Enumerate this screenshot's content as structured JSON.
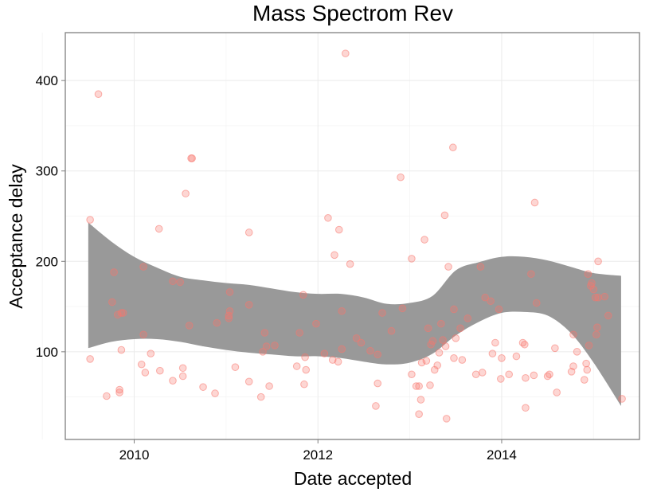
{
  "chart_data": {
    "type": "scatter",
    "title": "Mass Spectrom Rev",
    "xlabel": "Date accepted",
    "ylabel": "Acceptance delay",
    "x_tick_labels": [
      "2010",
      "2012",
      "2014"
    ],
    "y_tick_labels": [
      "100",
      "200",
      "300",
      "400"
    ],
    "grid": true,
    "colors": {
      "points": "#f8766d",
      "ribbon": "#999999",
      "panel_border": "#7f7f7f",
      "grid": "#ebebeb"
    },
    "series": [
      {
        "values": [
          {
            "x": 2009.52,
            "y": 246
          },
          {
            "x": 2009.52,
            "y": 92
          },
          {
            "x": 2009.61,
            "y": 385
          },
          {
            "x": 2009.7,
            "y": 51
          },
          {
            "x": 2009.76,
            "y": 155
          },
          {
            "x": 2009.78,
            "y": 188
          },
          {
            "x": 2009.82,
            "y": 141
          },
          {
            "x": 2009.84,
            "y": 55
          },
          {
            "x": 2009.84,
            "y": 58
          },
          {
            "x": 2009.86,
            "y": 143
          },
          {
            "x": 2009.86,
            "y": 102
          },
          {
            "x": 2009.88,
            "y": 143
          },
          {
            "x": 2010.08,
            "y": 86
          },
          {
            "x": 2010.1,
            "y": 119
          },
          {
            "x": 2010.1,
            "y": 194
          },
          {
            "x": 2010.12,
            "y": 77
          },
          {
            "x": 2010.18,
            "y": 98
          },
          {
            "x": 2010.27,
            "y": 236
          },
          {
            "x": 2010.28,
            "y": 79
          },
          {
            "x": 2010.42,
            "y": 68
          },
          {
            "x": 2010.42,
            "y": 178
          },
          {
            "x": 2010.5,
            "y": 177
          },
          {
            "x": 2010.53,
            "y": 82
          },
          {
            "x": 2010.53,
            "y": 73
          },
          {
            "x": 2010.56,
            "y": 275
          },
          {
            "x": 2010.6,
            "y": 129
          },
          {
            "x": 2010.62,
            "y": 314
          },
          {
            "x": 2010.63,
            "y": 314
          },
          {
            "x": 2010.75,
            "y": 61
          },
          {
            "x": 2010.88,
            "y": 54
          },
          {
            "x": 2010.9,
            "y": 132
          },
          {
            "x": 2011.03,
            "y": 140
          },
          {
            "x": 2011.03,
            "y": 137
          },
          {
            "x": 2011.04,
            "y": 145
          },
          {
            "x": 2011.04,
            "y": 166
          },
          {
            "x": 2011.1,
            "y": 83
          },
          {
            "x": 2011.25,
            "y": 232
          },
          {
            "x": 2011.25,
            "y": 67
          },
          {
            "x": 2011.25,
            "y": 152
          },
          {
            "x": 2011.38,
            "y": 50
          },
          {
            "x": 2011.4,
            "y": 100
          },
          {
            "x": 2011.42,
            "y": 121
          },
          {
            "x": 2011.44,
            "y": 106
          },
          {
            "x": 2011.47,
            "y": 62
          },
          {
            "x": 2011.53,
            "y": 107
          },
          {
            "x": 2011.77,
            "y": 84
          },
          {
            "x": 2011.8,
            "y": 121
          },
          {
            "x": 2011.84,
            "y": 163
          },
          {
            "x": 2011.85,
            "y": 64
          },
          {
            "x": 2011.86,
            "y": 94
          },
          {
            "x": 2011.87,
            "y": 80
          },
          {
            "x": 2011.98,
            "y": 131
          },
          {
            "x": 2012.07,
            "y": 98
          },
          {
            "x": 2012.11,
            "y": 248
          },
          {
            "x": 2012.16,
            "y": 91
          },
          {
            "x": 2012.18,
            "y": 207
          },
          {
            "x": 2012.22,
            "y": 89
          },
          {
            "x": 2012.23,
            "y": 235
          },
          {
            "x": 2012.26,
            "y": 103
          },
          {
            "x": 2012.26,
            "y": 145
          },
          {
            "x": 2012.3,
            "y": 430
          },
          {
            "x": 2012.35,
            "y": 197
          },
          {
            "x": 2012.42,
            "y": 115
          },
          {
            "x": 2012.47,
            "y": 110
          },
          {
            "x": 2012.57,
            "y": 101
          },
          {
            "x": 2012.63,
            "y": 40
          },
          {
            "x": 2012.65,
            "y": 97
          },
          {
            "x": 2012.65,
            "y": 65
          },
          {
            "x": 2012.7,
            "y": 143
          },
          {
            "x": 2012.8,
            "y": 123
          },
          {
            "x": 2012.9,
            "y": 293
          },
          {
            "x": 2012.92,
            "y": 148
          },
          {
            "x": 2013.02,
            "y": 203
          },
          {
            "x": 2013.02,
            "y": 75
          },
          {
            "x": 2013.07,
            "y": 62
          },
          {
            "x": 2013.1,
            "y": 31
          },
          {
            "x": 2013.1,
            "y": 62
          },
          {
            "x": 2013.12,
            "y": 47
          },
          {
            "x": 2013.13,
            "y": 88
          },
          {
            "x": 2013.16,
            "y": 224
          },
          {
            "x": 2013.18,
            "y": 90
          },
          {
            "x": 2013.2,
            "y": 126
          },
          {
            "x": 2013.22,
            "y": 63
          },
          {
            "x": 2013.23,
            "y": 108
          },
          {
            "x": 2013.25,
            "y": 112
          },
          {
            "x": 2013.27,
            "y": 80
          },
          {
            "x": 2013.3,
            "y": 85
          },
          {
            "x": 2013.32,
            "y": 99
          },
          {
            "x": 2013.34,
            "y": 131
          },
          {
            "x": 2013.36,
            "y": 113
          },
          {
            "x": 2013.38,
            "y": 251
          },
          {
            "x": 2013.39,
            "y": 106
          },
          {
            "x": 2013.4,
            "y": 26
          },
          {
            "x": 2013.42,
            "y": 194
          },
          {
            "x": 2013.47,
            "y": 326
          },
          {
            "x": 2013.48,
            "y": 147
          },
          {
            "x": 2013.48,
            "y": 93
          },
          {
            "x": 2013.5,
            "y": 115
          },
          {
            "x": 2013.55,
            "y": 126
          },
          {
            "x": 2013.57,
            "y": 91
          },
          {
            "x": 2013.63,
            "y": 137
          },
          {
            "x": 2013.72,
            "y": 75
          },
          {
            "x": 2013.77,
            "y": 194
          },
          {
            "x": 2013.79,
            "y": 77
          },
          {
            "x": 2013.82,
            "y": 160
          },
          {
            "x": 2013.88,
            "y": 156
          },
          {
            "x": 2013.9,
            "y": 98
          },
          {
            "x": 2013.93,
            "y": 110
          },
          {
            "x": 2013.97,
            "y": 147
          },
          {
            "x": 2013.99,
            "y": 70
          },
          {
            "x": 2014.0,
            "y": 93
          },
          {
            "x": 2014.08,
            "y": 75
          },
          {
            "x": 2014.16,
            "y": 95
          },
          {
            "x": 2014.23,
            "y": 110
          },
          {
            "x": 2014.25,
            "y": 108
          },
          {
            "x": 2014.26,
            "y": 71
          },
          {
            "x": 2014.26,
            "y": 38
          },
          {
            "x": 2014.32,
            "y": 186
          },
          {
            "x": 2014.35,
            "y": 74
          },
          {
            "x": 2014.36,
            "y": 265
          },
          {
            "x": 2014.38,
            "y": 154
          },
          {
            "x": 2014.5,
            "y": 73
          },
          {
            "x": 2014.52,
            "y": 75
          },
          {
            "x": 2014.58,
            "y": 104
          },
          {
            "x": 2014.6,
            "y": 55
          },
          {
            "x": 2014.76,
            "y": 78
          },
          {
            "x": 2014.78,
            "y": 84
          },
          {
            "x": 2014.78,
            "y": 119
          },
          {
            "x": 2014.82,
            "y": 100
          },
          {
            "x": 2014.9,
            "y": 69
          },
          {
            "x": 2014.92,
            "y": 87
          },
          {
            "x": 2014.93,
            "y": 80
          },
          {
            "x": 2014.94,
            "y": 186
          },
          {
            "x": 2014.95,
            "y": 107
          },
          {
            "x": 2014.97,
            "y": 173
          },
          {
            "x": 2014.98,
            "y": 176
          },
          {
            "x": 2015.0,
            "y": 169
          },
          {
            "x": 2015.02,
            "y": 160
          },
          {
            "x": 2015.03,
            "y": 119
          },
          {
            "x": 2015.04,
            "y": 127
          },
          {
            "x": 2015.05,
            "y": 200
          },
          {
            "x": 2015.05,
            "y": 160
          },
          {
            "x": 2015.12,
            "y": 161
          },
          {
            "x": 2015.16,
            "y": 140
          },
          {
            "x": 2015.31,
            "y": 48
          }
        ]
      }
    ],
    "smooth_ribbon": {
      "x": [
        2009.5,
        2009.75,
        2010.0,
        2010.25,
        2010.5,
        2010.75,
        2011.0,
        2011.25,
        2011.5,
        2011.75,
        2012.0,
        2012.25,
        2012.5,
        2012.75,
        2013.0,
        2013.25,
        2013.5,
        2013.75,
        2014.0,
        2014.25,
        2014.5,
        2014.75,
        2015.0,
        2015.3
      ],
      "upper": [
        243,
        222,
        205,
        193,
        183,
        179,
        176,
        174,
        170,
        166,
        164,
        164,
        160,
        153,
        154,
        162,
        190,
        199,
        205,
        205,
        201,
        194,
        187,
        184
      ],
      "lower": [
        104,
        111,
        114,
        114,
        111,
        106,
        102,
        99,
        97,
        95,
        95,
        93,
        89,
        86,
        88,
        98,
        118,
        133,
        143,
        144,
        140,
        121,
        88,
        40
      ]
    }
  }
}
